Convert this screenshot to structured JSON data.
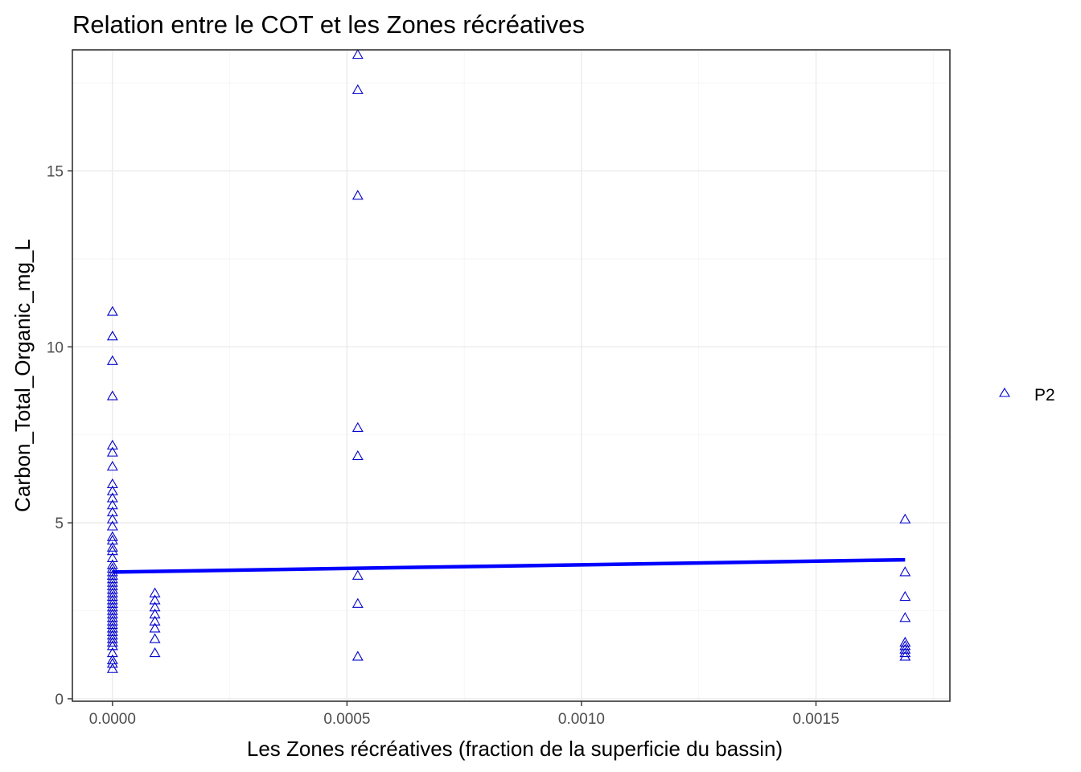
{
  "chart_data": {
    "type": "scatter",
    "title": "Relation entre le COT et les Zones récréatives",
    "xlabel": "Les Zones récréatives (fraction de la superficie du bassin)",
    "ylabel": "Carbon_Total_Organic_mg_L",
    "xlim": [
      -8.55e-05,
      0.0017855
    ],
    "ylim": [
      -0.07,
      18.44
    ],
    "x_ticks": [
      0.0,
      0.0005,
      0.001,
      0.0015
    ],
    "x_tick_labels": [
      "0.0000",
      "0.0005",
      "0.0010",
      "0.0015"
    ],
    "y_ticks": [
      0,
      5,
      10,
      15
    ],
    "y_tick_labels": [
      "0",
      "5",
      "10",
      "15"
    ],
    "grid": true,
    "legend": {
      "position": "right",
      "entries": [
        "P2"
      ]
    },
    "series": [
      {
        "name": "P2",
        "marker": "open-triangle",
        "color": "#0000cc",
        "x": [
          0,
          0,
          0,
          0,
          0,
          0,
          0,
          0,
          0,
          0,
          0,
          0,
          0,
          0,
          0,
          0,
          0,
          0,
          0,
          0,
          0,
          0,
          0,
          0,
          0,
          0,
          0,
          0,
          0,
          0,
          0,
          0,
          0,
          0,
          0,
          0,
          0,
          0,
          0,
          0,
          0,
          0,
          0,
          0,
          0,
          0,
          0,
          9.04e-05,
          9.04e-05,
          9.04e-05,
          9.04e-05,
          9.04e-05,
          9.04e-05,
          9.04e-05,
          9.04e-05,
          0.000523,
          0.000523,
          0.000523,
          0.000523,
          0.000523,
          0.000523,
          0.000523,
          0.000523,
          0.00169,
          0.00169,
          0.00169,
          0.00169,
          0.00169,
          0.00169,
          0.00169,
          0.00169,
          0.00169
        ],
        "y": [
          11.0,
          10.3,
          9.6,
          8.6,
          7.2,
          7.0,
          6.6,
          6.1,
          5.9,
          5.7,
          5.5,
          5.3,
          5.1,
          4.9,
          4.6,
          4.5,
          4.3,
          4.2,
          4.0,
          3.8,
          3.7,
          3.6,
          3.5,
          3.4,
          3.3,
          3.2,
          3.1,
          3.0,
          2.9,
          2.8,
          2.7,
          2.6,
          2.5,
          2.4,
          2.3,
          2.2,
          2.1,
          2.0,
          1.9,
          1.8,
          1.7,
          1.6,
          1.5,
          1.3,
          1.1,
          1.0,
          0.85,
          3.0,
          2.8,
          2.6,
          2.4,
          2.2,
          2.0,
          1.7,
          1.3,
          18.3,
          17.3,
          14.3,
          7.7,
          6.9,
          3.5,
          2.7,
          1.2,
          5.1,
          3.6,
          2.9,
          2.3,
          1.6,
          1.5,
          1.4,
          1.3,
          1.2
        ]
      }
    ],
    "trendline": {
      "name": "linear fit",
      "color": "#0000ff",
      "x": [
        0,
        0.00169
      ],
      "y": [
        3.6,
        3.95
      ]
    }
  }
}
